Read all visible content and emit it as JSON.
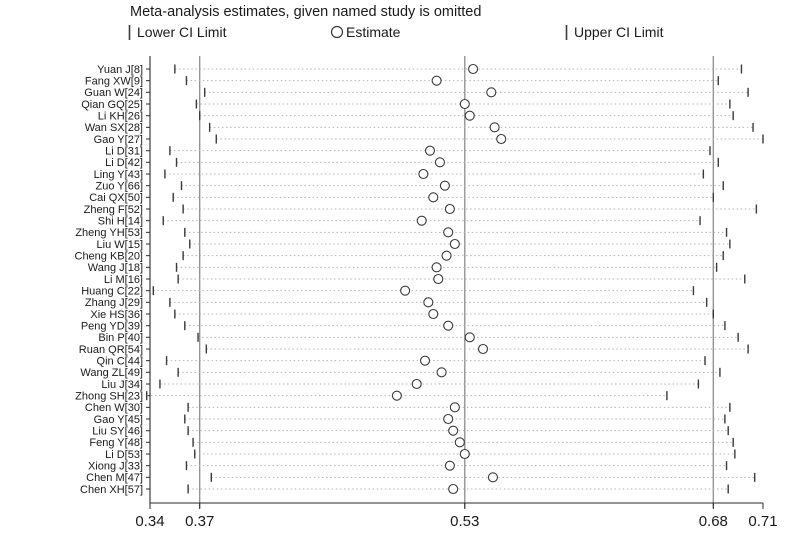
{
  "title": "Meta-analysis estimates, given named study is omitted",
  "legend": {
    "lower": "Lower CI Limit",
    "estimate": "Estimate",
    "upper": "Upper CI Limit"
  },
  "chart_data": {
    "type": "scatter",
    "variant": "meta-analysis-sensitivity (leave-one-out CI plot)",
    "title": "Meta-analysis estimates, given named study is omitted",
    "xlabel": "",
    "ylabel": "",
    "xlim": [
      0.34,
      0.71
    ],
    "x_ticks": [
      0.34,
      0.37,
      0.53,
      0.68,
      0.71
    ],
    "x_tick_labels": [
      "0.34",
      "0.37",
      "0.53",
      "0.68",
      "0.71"
    ],
    "reference_lines": [
      0.37,
      0.53,
      0.68
    ],
    "grid": false,
    "legend_position": "top",
    "studies": [
      {
        "label": "Yuan J[8]",
        "lower": 0.355,
        "estimate": 0.535,
        "upper": 0.697
      },
      {
        "label": "Fang XW[9]",
        "lower": 0.362,
        "estimate": 0.513,
        "upper": 0.683
      },
      {
        "label": "Guan W[24]",
        "lower": 0.373,
        "estimate": 0.546,
        "upper": 0.701
      },
      {
        "label": "Qian GQ[25]",
        "lower": 0.368,
        "estimate": 0.53,
        "upper": 0.69
      },
      {
        "label": "Li KH[26]",
        "lower": 0.37,
        "estimate": 0.533,
        "upper": 0.692
      },
      {
        "label": "Wan SX[28]",
        "lower": 0.376,
        "estimate": 0.548,
        "upper": 0.704
      },
      {
        "label": "Gao Y[27]",
        "lower": 0.38,
        "estimate": 0.552,
        "upper": 0.71
      },
      {
        "label": "Li D[31]",
        "lower": 0.352,
        "estimate": 0.509,
        "upper": 0.678
      },
      {
        "label": "Li D[42]",
        "lower": 0.356,
        "estimate": 0.515,
        "upper": 0.683
      },
      {
        "label": "Ling Y[43]",
        "lower": 0.349,
        "estimate": 0.505,
        "upper": 0.674
      },
      {
        "label": "Zuo Y[66]",
        "lower": 0.359,
        "estimate": 0.518,
        "upper": 0.686
      },
      {
        "label": "Cai QX[50]",
        "lower": 0.354,
        "estimate": 0.511,
        "upper": 0.68
      },
      {
        "label": "Zheng F[52]",
        "lower": 0.36,
        "estimate": 0.521,
        "upper": 0.706
      },
      {
        "label": "Shi H[14]",
        "lower": 0.348,
        "estimate": 0.504,
        "upper": 0.672
      },
      {
        "label": "Zheng YH[53]",
        "lower": 0.361,
        "estimate": 0.52,
        "upper": 0.688
      },
      {
        "label": "Liu W[15]",
        "lower": 0.364,
        "estimate": 0.524,
        "upper": 0.69
      },
      {
        "label": "Cheng KB[20]",
        "lower": 0.36,
        "estimate": 0.519,
        "upper": 0.686
      },
      {
        "label": "Wang J[18]",
        "lower": 0.356,
        "estimate": 0.513,
        "upper": 0.682
      },
      {
        "label": "Li M[16]",
        "lower": 0.357,
        "estimate": 0.514,
        "upper": 0.699
      },
      {
        "label": "Huang C[22]",
        "lower": 0.342,
        "estimate": 0.494,
        "upper": 0.668
      },
      {
        "label": "Zhang J[29]",
        "lower": 0.352,
        "estimate": 0.508,
        "upper": 0.676
      },
      {
        "label": "Xie HS[36]",
        "lower": 0.355,
        "estimate": 0.511,
        "upper": 0.68
      },
      {
        "label": "Peng YD[39]",
        "lower": 0.361,
        "estimate": 0.52,
        "upper": 0.687
      },
      {
        "label": "Bin P[40]",
        "lower": 0.369,
        "estimate": 0.533,
        "upper": 0.695
      },
      {
        "label": "Ruan QR[54]",
        "lower": 0.374,
        "estimate": 0.541,
        "upper": 0.701
      },
      {
        "label": "Qin C[44]",
        "lower": 0.35,
        "estimate": 0.506,
        "upper": 0.675
      },
      {
        "label": "Wang ZL[49]",
        "lower": 0.357,
        "estimate": 0.516,
        "upper": 0.684
      },
      {
        "label": "Liu J[34]",
        "lower": 0.346,
        "estimate": 0.501,
        "upper": 0.671
      },
      {
        "label": "Zhong SH[23]",
        "lower": 0.338,
        "estimate": 0.489,
        "upper": 0.652
      },
      {
        "label": "Chen W[30]",
        "lower": 0.363,
        "estimate": 0.524,
        "upper": 0.69
      },
      {
        "label": "Gao Y[45]",
        "lower": 0.361,
        "estimate": 0.52,
        "upper": 0.687
      },
      {
        "label": "Liu SY[46]",
        "lower": 0.363,
        "estimate": 0.523,
        "upper": 0.689
      },
      {
        "label": "Feng Y[48]",
        "lower": 0.366,
        "estimate": 0.527,
        "upper": 0.692
      },
      {
        "label": "Li D[53]",
        "lower": 0.367,
        "estimate": 0.53,
        "upper": 0.693
      },
      {
        "label": "Xiong J[33]",
        "lower": 0.362,
        "estimate": 0.521,
        "upper": 0.688
      },
      {
        "label": "Chen M[47]",
        "lower": 0.377,
        "estimate": 0.547,
        "upper": 0.705
      },
      {
        "label": "Chen XH[57]",
        "lower": 0.363,
        "estimate": 0.523,
        "upper": 0.689
      }
    ],
    "colors": {
      "marker_stroke": "#3a3a3a",
      "ci_dotted_line": "#b3b3b3",
      "reference_line": "#8c8c8c",
      "text": "#1a1a1a"
    }
  }
}
